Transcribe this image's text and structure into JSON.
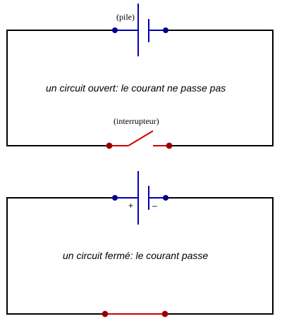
{
  "colors": {
    "wire": "#000000",
    "battery": "#0000aa",
    "battery_terminal": "#00008b",
    "switch": "#cc0000",
    "switch_terminal": "#8b0000"
  },
  "open_circuit": {
    "battery_label": "(pile)",
    "switch_label": "(interrupteur)",
    "caption": "un circuit ouvert: le courant ne passe pas",
    "switch_state": "open"
  },
  "closed_circuit": {
    "plus_sign": "+",
    "minus_sign": "–",
    "caption": "un circuit fermé: le courant  passe",
    "switch_state": "closed"
  }
}
